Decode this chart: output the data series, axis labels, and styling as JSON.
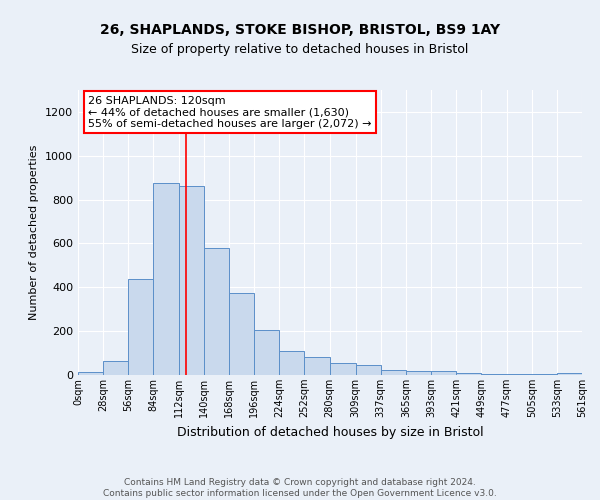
{
  "title1": "26, SHAPLANDS, STOKE BISHOP, BRISTOL, BS9 1AY",
  "title2": "Size of property relative to detached houses in Bristol",
  "xlabel": "Distribution of detached houses by size in Bristol",
  "ylabel": "Number of detached properties",
  "bar_color": "#c9d9ed",
  "bar_edge_color": "#5b8fc9",
  "background_color": "#eaf0f8",
  "grid_color": "white",
  "annotation_box_color": "white",
  "annotation_border_color": "red",
  "vline_color": "red",
  "vline_x": 120,
  "annotation_line1": "26 SHAPLANDS: 120sqm",
  "annotation_line2": "← 44% of detached houses are smaller (1,630)",
  "annotation_line3": "55% of semi-detached houses are larger (2,072) →",
  "footer1": "Contains HM Land Registry data © Crown copyright and database right 2024.",
  "footer2": "Contains public sector information licensed under the Open Government Licence v3.0.",
  "bin_edges": [
    0,
    28,
    56,
    84,
    112,
    140,
    168,
    196,
    224,
    252,
    280,
    309,
    337,
    365,
    393,
    421,
    449,
    477,
    505,
    533,
    561
  ],
  "bar_heights": [
    14,
    65,
    437,
    878,
    862,
    578,
    374,
    207,
    110,
    82,
    56,
    44,
    21,
    17,
    16,
    7,
    5,
    5,
    5,
    10
  ],
  "ylim": [
    0,
    1300
  ],
  "yticks": [
    0,
    200,
    400,
    600,
    800,
    1000,
    1200
  ]
}
